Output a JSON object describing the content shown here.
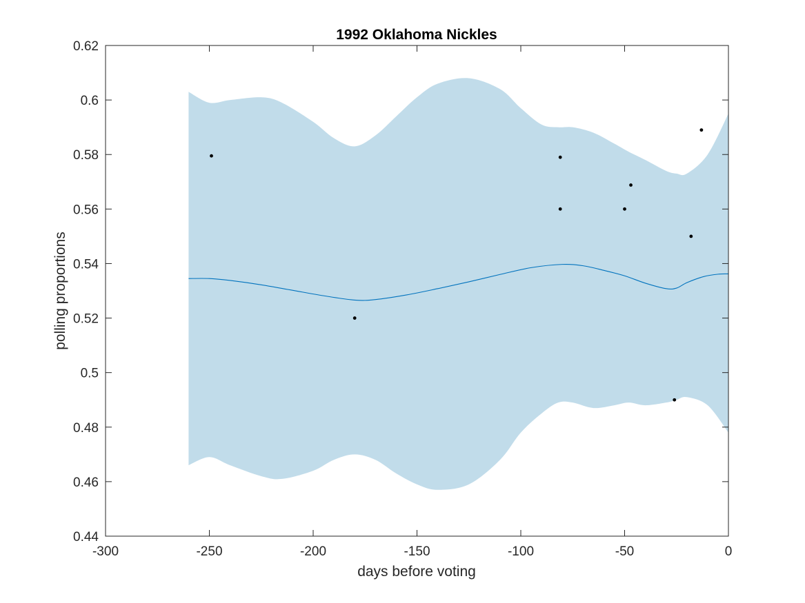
{
  "chart_data": {
    "type": "line",
    "title": "1992 Oklahoma Nickles",
    "xlabel": "days before voting",
    "ylabel": "polling proportions",
    "xlim": [
      -300,
      0
    ],
    "ylim": [
      0.44,
      0.62
    ],
    "xticks": [
      -300,
      -250,
      -200,
      -150,
      -100,
      -50,
      0
    ],
    "xtick_labels": [
      "-300",
      "-250",
      "-200",
      "-150",
      "-100",
      "-50",
      "0"
    ],
    "yticks": [
      0.44,
      0.46,
      0.48,
      0.5,
      0.52,
      0.54,
      0.56,
      0.58,
      0.6,
      0.62
    ],
    "ytick_labels": [
      "0.44",
      "0.46",
      "0.48",
      "0.5",
      "0.52",
      "0.54",
      "0.56",
      "0.58",
      "0.6",
      "0.62"
    ],
    "grid": false,
    "colors": {
      "band": "#c1dcea",
      "mean_line": "#0072bd",
      "points": "#000000",
      "axes": "#262626"
    },
    "band": {
      "x": [
        -260,
        -250,
        -240,
        -225,
        -215,
        -200,
        -190,
        -180,
        -170,
        -160,
        -150,
        -140,
        -125,
        -110,
        -100,
        -90,
        -82,
        -75,
        -65,
        -55,
        -48,
        -40,
        -30,
        -25,
        -20,
        -10,
        0
      ],
      "upper": [
        0.603,
        0.599,
        0.6,
        0.601,
        0.599,
        0.592,
        0.586,
        0.583,
        0.587,
        0.594,
        0.601,
        0.606,
        0.608,
        0.604,
        0.597,
        0.591,
        0.59,
        0.59,
        0.588,
        0.584,
        0.581,
        0.578,
        0.574,
        0.573,
        0.573,
        0.58,
        0.595
      ],
      "lower": [
        0.466,
        0.469,
        0.466,
        0.462,
        0.461,
        0.464,
        0.468,
        0.47,
        0.468,
        0.463,
        0.459,
        0.457,
        0.459,
        0.468,
        0.478,
        0.485,
        0.489,
        0.489,
        0.487,
        0.488,
        0.489,
        0.488,
        0.489,
        0.49,
        0.491,
        0.488,
        0.478
      ]
    },
    "mean": {
      "x": [
        -260,
        -250,
        -240,
        -225,
        -210,
        -195,
        -180,
        -170,
        -155,
        -140,
        -125,
        -110,
        -95,
        -80,
        -70,
        -60,
        -50,
        -40,
        -30,
        -25,
        -20,
        -12,
        -5,
        0
      ],
      "y": [
        0.5345,
        0.5345,
        0.5338,
        0.5322,
        0.5302,
        0.5282,
        0.5266,
        0.5268,
        0.5285,
        0.5308,
        0.5333,
        0.536,
        0.5385,
        0.5397,
        0.5392,
        0.5375,
        0.5355,
        0.5328,
        0.5308,
        0.531,
        0.533,
        0.5352,
        0.5361,
        0.5362
      ]
    },
    "points": {
      "x": [
        -249,
        -180,
        -81,
        -81,
        -50,
        -47,
        -26,
        -18,
        -13
      ],
      "y": [
        0.5795,
        0.52,
        0.579,
        0.56,
        0.56,
        0.5688,
        0.49,
        0.55,
        0.589
      ]
    }
  }
}
